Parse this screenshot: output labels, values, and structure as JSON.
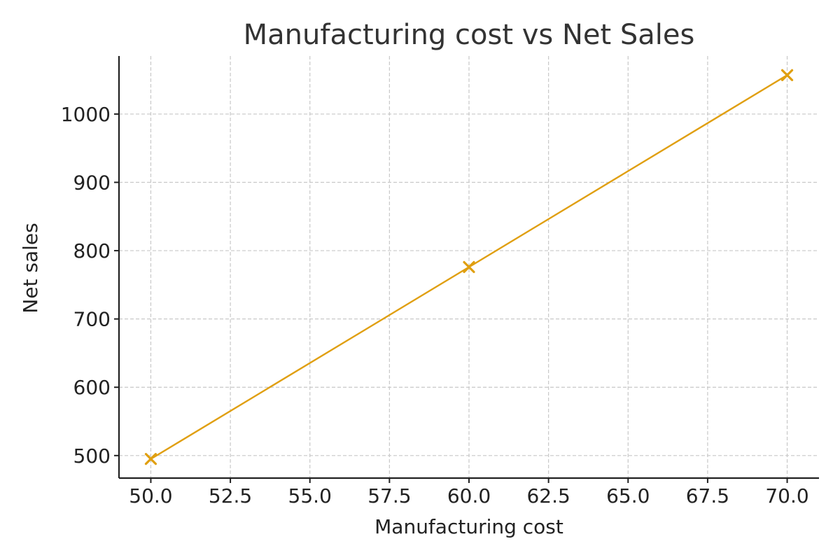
{
  "chart_data": {
    "type": "line",
    "title": "Manufacturing cost vs Net Sales",
    "xlabel": "Manufacturing cost",
    "ylabel": "Net sales",
    "xlim": [
      49.0,
      71.0
    ],
    "ylim": [
      467,
      1085
    ],
    "x_ticks": [
      50.0,
      52.5,
      55.0,
      57.5,
      60.0,
      62.5,
      65.0,
      67.5,
      70.0
    ],
    "x_tick_labels": [
      "50.0",
      "52.5",
      "55.0",
      "57.5",
      "60.0",
      "62.5",
      "65.0",
      "67.5",
      "70.0"
    ],
    "y_ticks": [
      500,
      600,
      700,
      800,
      900,
      1000
    ],
    "y_tick_labels": [
      "500",
      "600",
      "700",
      "800",
      "900",
      "1000"
    ],
    "grid": true,
    "series": [
      {
        "x": [
          50,
          60,
          70
        ],
        "y": [
          495,
          776,
          1057
        ],
        "color": "#e09f10",
        "marker": "x"
      }
    ]
  }
}
